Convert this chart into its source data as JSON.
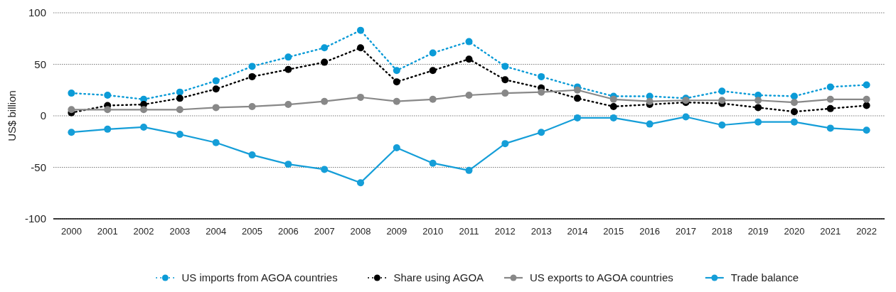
{
  "chart_data": {
    "type": "line",
    "ylabel": "US$ billion",
    "categories": [
      "2000",
      "2001",
      "2002",
      "2003",
      "2004",
      "2005",
      "2006",
      "2007",
      "2008",
      "2009",
      "2010",
      "2011",
      "2012",
      "2013",
      "2014",
      "2015",
      "2016",
      "2017",
      "2018",
      "2019",
      "2020",
      "2021",
      "2022"
    ],
    "ylim": [
      -100,
      100
    ],
    "yticks": [
      -100,
      -50,
      0,
      50,
      100
    ],
    "grid": "y",
    "legend": "bottom",
    "marker": "circle",
    "series": [
      {
        "name": "US imports from AGOA countries",
        "color": "#0b9bd7",
        "line_style": "dotted",
        "values": [
          22,
          20,
          16,
          23,
          34,
          48,
          57,
          66,
          83,
          44,
          61,
          72,
          48,
          38,
          28,
          19,
          19,
          17,
          24,
          20,
          19,
          28,
          30
        ]
      },
      {
        "name": "Share using AGOA",
        "color": "#000000",
        "line_style": "dotted",
        "values": [
          3,
          10,
          11,
          17,
          26,
          38,
          45,
          52,
          66,
          33,
          44,
          55,
          35,
          27,
          17,
          9,
          11,
          13,
          12,
          8,
          4,
          7,
          10
        ]
      },
      {
        "name": "US exports to AGOA countries",
        "color": "#888888",
        "line_style": "solid",
        "values": [
          6,
          6,
          6,
          6,
          8,
          9,
          11,
          14,
          18,
          14,
          16,
          20,
          22,
          23,
          25,
          16,
          14,
          15,
          15,
          15,
          13,
          16,
          16
        ]
      },
      {
        "name": "Trade balance",
        "color": "#159ed8",
        "line_style": "solid",
        "values": [
          -16,
          -13,
          -11,
          -18,
          -26,
          -38,
          -47,
          -52,
          -65,
          -31,
          -46,
          -53,
          -27,
          -16,
          -2,
          -2,
          -8,
          -1,
          -9,
          -6,
          -6,
          -12,
          -14
        ]
      }
    ]
  }
}
